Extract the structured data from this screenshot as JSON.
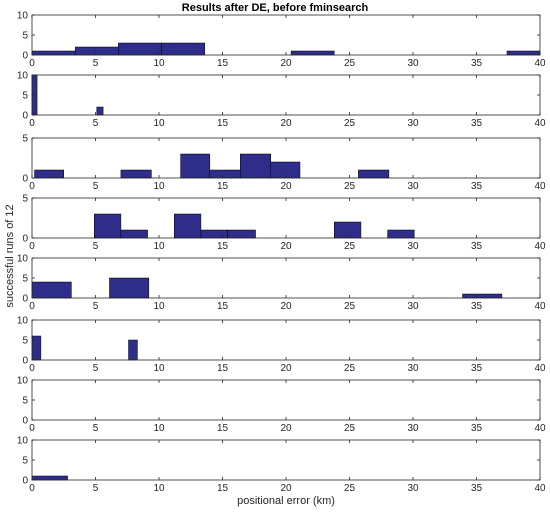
{
  "chart_data": {
    "type": "bar",
    "title": "Results after DE, before fminsearch",
    "xlabel": "positional error (km)",
    "ylabel": "successful runs of 12",
    "xlim": [
      0,
      40
    ],
    "xticks": [
      0,
      5,
      10,
      15,
      20,
      25,
      30,
      35,
      40
    ],
    "bar_color": "#2e2e8a",
    "panels": [
      {
        "ylim": [
          0,
          10
        ],
        "yticks": [
          0,
          5,
          10
        ],
        "bins": [
          {
            "x0": 0.0,
            "x1": 3.4,
            "value": 1
          },
          {
            "x0": 3.4,
            "x1": 6.8,
            "value": 2
          },
          {
            "x0": 6.8,
            "x1": 10.2,
            "value": 3
          },
          {
            "x0": 10.2,
            "x1": 13.6,
            "value": 3
          },
          {
            "x0": 20.4,
            "x1": 23.8,
            "value": 1
          },
          {
            "x0": 37.4,
            "x1": 40.0,
            "value": 1
          }
        ]
      },
      {
        "ylim": [
          0,
          10
        ],
        "yticks": [
          0,
          5,
          10
        ],
        "bins": [
          {
            "x0": 0.0,
            "x1": 0.4,
            "value": 10
          },
          {
            "x0": 5.1,
            "x1": 5.6,
            "value": 2
          }
        ]
      },
      {
        "ylim": [
          0,
          5
        ],
        "yticks": [
          0,
          5
        ],
        "bins": [
          {
            "x0": 0.2,
            "x1": 2.5,
            "value": 1
          },
          {
            "x0": 7.0,
            "x1": 9.4,
            "value": 1
          },
          {
            "x0": 11.7,
            "x1": 14.0,
            "value": 3
          },
          {
            "x0": 14.0,
            "x1": 16.4,
            "value": 1
          },
          {
            "x0": 16.4,
            "x1": 18.8,
            "value": 3
          },
          {
            "x0": 18.8,
            "x1": 21.1,
            "value": 2
          },
          {
            "x0": 25.7,
            "x1": 28.1,
            "value": 1
          }
        ]
      },
      {
        "ylim": [
          0,
          5
        ],
        "yticks": [
          0,
          5
        ],
        "bins": [
          {
            "x0": 4.9,
            "x1": 7.0,
            "value": 3
          },
          {
            "x0": 7.0,
            "x1": 9.1,
            "value": 1
          },
          {
            "x0": 11.2,
            "x1": 13.3,
            "value": 3
          },
          {
            "x0": 13.3,
            "x1": 15.4,
            "value": 1
          },
          {
            "x0": 15.4,
            "x1": 17.6,
            "value": 1
          },
          {
            "x0": 23.8,
            "x1": 25.9,
            "value": 2
          },
          {
            "x0": 28.0,
            "x1": 30.1,
            "value": 1
          }
        ]
      },
      {
        "ylim": [
          0,
          10
        ],
        "yticks": [
          0,
          5,
          10
        ],
        "bins": [
          {
            "x0": 0.0,
            "x1": 3.1,
            "value": 4
          },
          {
            "x0": 6.1,
            "x1": 9.2,
            "value": 5
          },
          {
            "x0": 33.9,
            "x1": 37.0,
            "value": 1
          }
        ]
      },
      {
        "ylim": [
          0,
          10
        ],
        "yticks": [
          0,
          5,
          10
        ],
        "bins": [
          {
            "x0": 0.0,
            "x1": 0.7,
            "value": 6
          },
          {
            "x0": 7.6,
            "x1": 8.3,
            "value": 5
          }
        ]
      },
      {
        "ylim": [
          0,
          10
        ],
        "yticks": [
          0,
          5,
          10
        ],
        "bins": []
      },
      {
        "ylim": [
          0,
          10
        ],
        "yticks": [
          0,
          5,
          10
        ],
        "bins": [
          {
            "x0": 0.0,
            "x1": 2.8,
            "value": 1
          }
        ]
      }
    ]
  }
}
